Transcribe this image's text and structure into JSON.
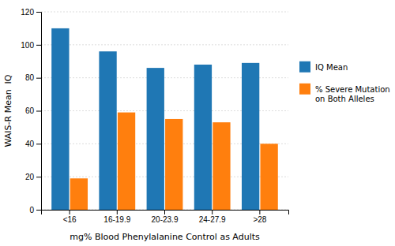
{
  "chart_data": {
    "type": "bar",
    "categories": [
      "<16",
      "16-19.9",
      "20-23.9",
      "24-27.9",
      ">28"
    ],
    "series": [
      {
        "name": "IQ Mean",
        "values": [
          110,
          96,
          86,
          88,
          89
        ]
      },
      {
        "name": "% Severe Mutation\non Both Alleles",
        "values": [
          19,
          59,
          55,
          53,
          40
        ]
      }
    ],
    "xlabel": "mg% Blood Phenylalanine Control as Adults",
    "ylabel": "WAIS-R Mean  IQ",
    "ylim": [
      0,
      120
    ],
    "yticks": [
      0,
      20,
      40,
      60,
      80,
      100,
      120
    ],
    "grid": true,
    "legend": "right"
  }
}
